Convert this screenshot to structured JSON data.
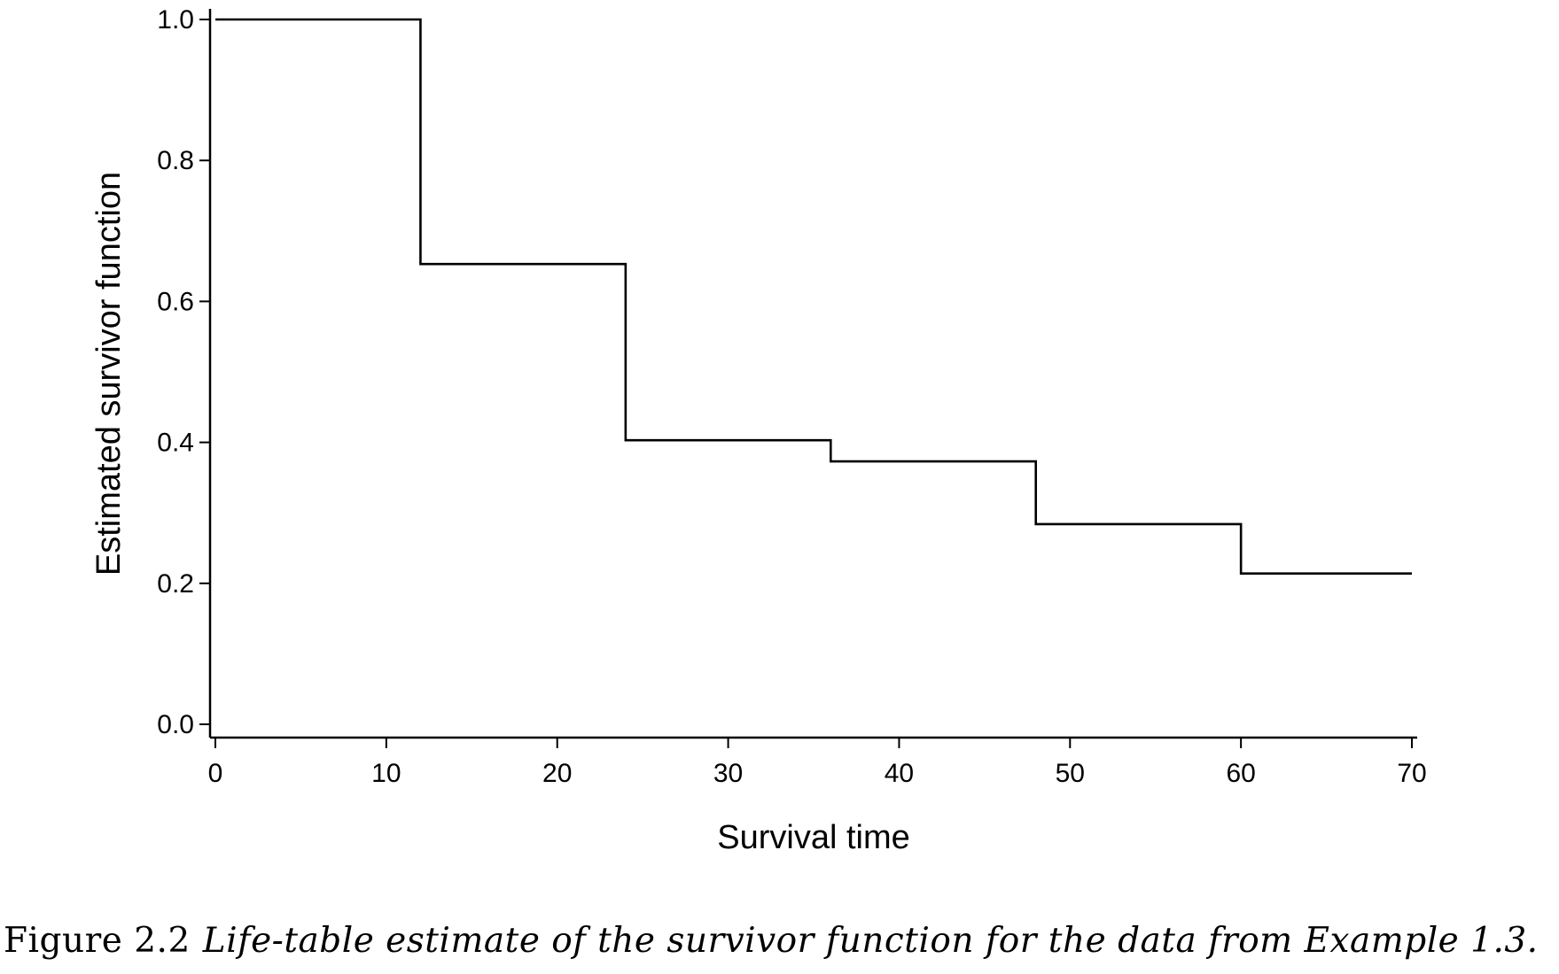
{
  "chart_data": {
    "type": "line",
    "style": "step",
    "xlabel": "Survival time",
    "ylabel": "Estimated survivor function",
    "xlim": [
      0,
      70
    ],
    "ylim": [
      0,
      1
    ],
    "x_ticks": [
      "0",
      "10",
      "20",
      "30",
      "40",
      "50",
      "60",
      "70"
    ],
    "y_ticks": [
      "0.0",
      "0.2",
      "0.4",
      "0.6",
      "0.8",
      "1.0"
    ],
    "grid": false,
    "series": [
      {
        "x": [
          0,
          12,
          24,
          36,
          48,
          60,
          70
        ],
        "y": [
          1.0,
          0.653,
          0.403,
          0.373,
          0.284,
          0.214,
          0.214
        ]
      }
    ],
    "line_color": "#000000"
  },
  "caption": {
    "label": "Figure 2.2",
    "text": "Life-table estimate of the survivor function for the data from Example 1.3."
  }
}
